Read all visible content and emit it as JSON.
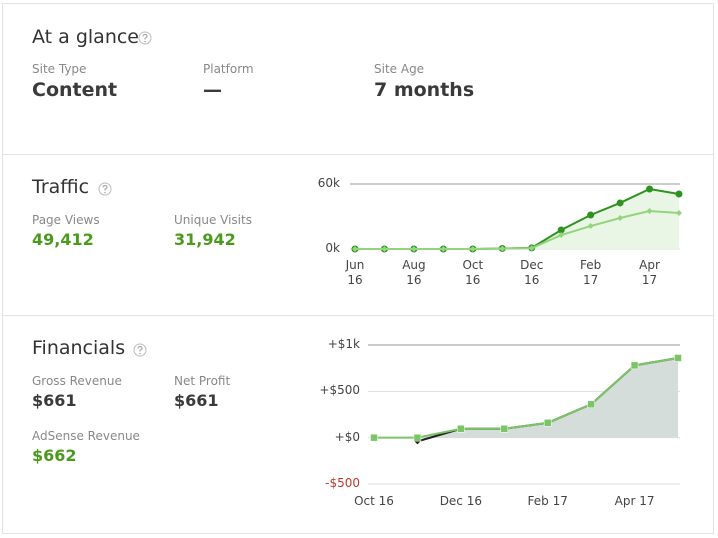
{
  "glance": {
    "title": "At a glance",
    "items": [
      {
        "label": "Site Type",
        "value": "Content"
      },
      {
        "label": "Platform",
        "value": "—"
      },
      {
        "label": "Site Age",
        "value": "7 months"
      }
    ]
  },
  "traffic": {
    "title": "Traffic",
    "stats": [
      {
        "label": "Page Views",
        "value": "49,412"
      },
      {
        "label": "Unique Visits",
        "value": "31,942"
      }
    ]
  },
  "financials": {
    "title": "Financials",
    "stats": [
      {
        "label": "Gross Revenue",
        "value": "$661"
      },
      {
        "label": "Net Profit",
        "value": "$661"
      },
      {
        "label": "AdSense Revenue",
        "value": "$662"
      }
    ]
  },
  "chart_data": [
    {
      "type": "line",
      "categories": [
        "Jun 16",
        null,
        "Aug 16",
        null,
        "Oct 16",
        null,
        "Dec 16",
        null,
        "Feb 17",
        null,
        "Apr 17",
        null
      ],
      "series": [
        {
          "color": "#2d9220",
          "marker": "circle",
          "area_color": "#e9f6e5",
          "values": [
            0,
            0,
            0,
            0,
            0,
            500,
            1000,
            17500,
            31400,
            42500,
            55400,
            50800
          ]
        },
        {
          "color": "#93d47d",
          "marker": "diamond",
          "values": [
            0,
            0,
            0,
            0,
            0,
            400,
            800,
            12900,
            21200,
            28600,
            35100,
            33200
          ]
        }
      ],
      "ylim": [
        0,
        60000
      ],
      "yticks": [
        {
          "value": 0,
          "label": "0k"
        },
        {
          "value": 60000,
          "label": "60k"
        }
      ],
      "grid": true
    },
    {
      "type": "line",
      "categories": [
        "Oct 16",
        null,
        "Dec 16",
        null,
        "Feb 17",
        null,
        "Apr 17",
        null
      ],
      "series": [
        {
          "color": "#222222",
          "marker": "diamond",
          "values": [
            null,
            -40,
            96,
            96,
            160,
            360,
            780,
            860
          ]
        },
        {
          "color": "#7cc566",
          "marker": "square",
          "area_color": "#d4ddd9",
          "values": [
            0,
            0,
            96,
            96,
            160,
            360,
            780,
            860
          ]
        }
      ],
      "ylim": [
        -500,
        1000
      ],
      "yticks": [
        {
          "value": -500,
          "label": "-$500"
        },
        {
          "value": 0,
          "label": "+$0"
        },
        {
          "value": 500,
          "label": "+$500"
        },
        {
          "value": 1000,
          "label": "+$1k"
        }
      ],
      "grid": true
    }
  ]
}
